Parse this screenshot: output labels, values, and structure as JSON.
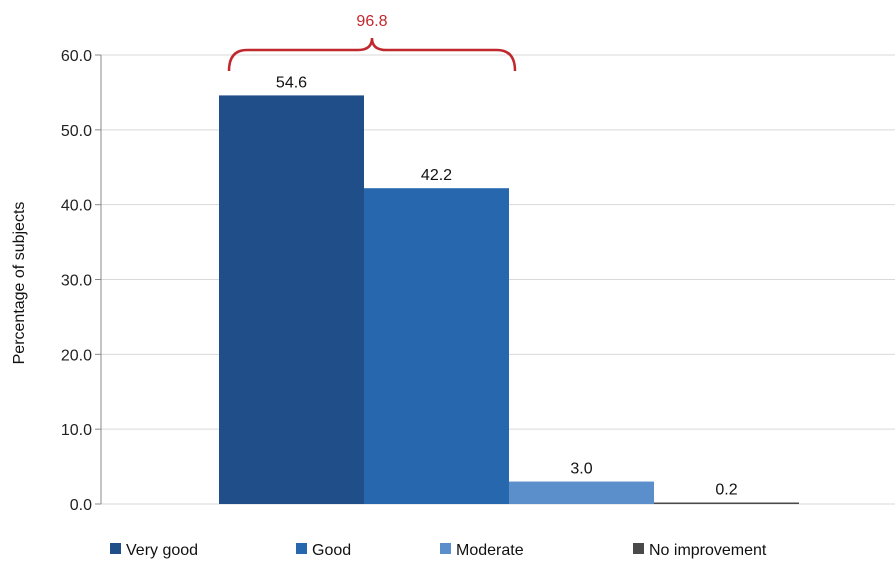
{
  "chart_data": {
    "type": "bar",
    "title": "",
    "xlabel": "",
    "ylabel": "Percentage of subjects",
    "ylim": [
      0,
      60
    ],
    "yticks": [
      "0.0",
      "10.0",
      "20.0",
      "30.0",
      "40.0",
      "50.0",
      "60.0"
    ],
    "grid": true,
    "legend_position": "bottom",
    "series": [
      {
        "name": "Very good",
        "value": 54.6,
        "label": "54.6",
        "color": "#1f4e89"
      },
      {
        "name": "Good",
        "value": 42.2,
        "label": "42.2",
        "color": "#2767ad"
      },
      {
        "name": "Moderate",
        "value": 3.0,
        "label": "3.0",
        "color": "#5b8fcc"
      },
      {
        "name": "No improvement",
        "value": 0.2,
        "label": "0.2",
        "color": "#4a4a4a"
      }
    ],
    "annotation": {
      "text": "96.8",
      "spans": [
        "Very good",
        "Good"
      ],
      "color": "#c0282d"
    }
  }
}
